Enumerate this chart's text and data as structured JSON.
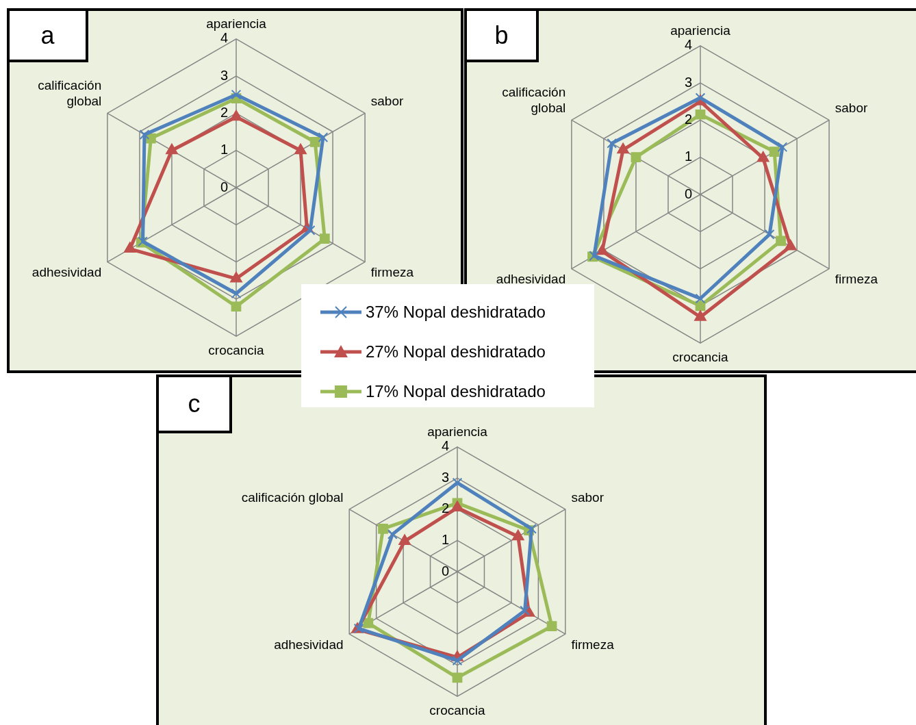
{
  "chart_data": [
    {
      "type": "radar",
      "title": "a",
      "categories": [
        "apariencia",
        "sabor",
        "firmeza",
        "crocancia",
        "adhesividad",
        "calificación global"
      ],
      "ylim": [
        0,
        4
      ],
      "yticks": [
        0,
        1,
        2,
        3,
        4
      ],
      "grid": true,
      "legend": "bottom right",
      "series": [
        {
          "name": "37% Nopal deshidratado",
          "color": "#4f81bd",
          "marker": "cross",
          "values": [
            2.5,
            2.7,
            2.3,
            2.85,
            2.9,
            2.85
          ]
        },
        {
          "name": "27% Nopal deshidratado",
          "color": "#c0504d",
          "marker": "triangle",
          "values": [
            1.9,
            2.0,
            2.2,
            2.45,
            3.3,
            2.0
          ]
        },
        {
          "name": "17% Nopal deshidratado",
          "color": "#9bbb59",
          "marker": "square",
          "values": [
            2.4,
            2.45,
            2.75,
            3.2,
            2.95,
            2.65
          ]
        }
      ]
    },
    {
      "type": "radar",
      "title": "b",
      "categories": [
        "apariencia",
        "sabor",
        "firmeza",
        "crocancia",
        "adhesividad",
        "calificación global"
      ],
      "ylim": [
        0,
        4
      ],
      "yticks": [
        0,
        1,
        2,
        3,
        4
      ],
      "grid": true,
      "series": [
        {
          "color": "#4f81bd",
          "marker": "cross",
          "values": [
            2.6,
            2.55,
            2.15,
            2.8,
            3.3,
            2.75
          ]
        },
        {
          "color": "#c0504d",
          "marker": "triangle",
          "values": [
            2.5,
            1.95,
            2.8,
            3.3,
            3.05,
            2.4
          ]
        },
        {
          "color": "#9bbb59",
          "marker": "square",
          "values": [
            2.15,
            2.3,
            2.5,
            3.0,
            3.35,
            2.0
          ]
        }
      ]
    },
    {
      "type": "radar",
      "title": "c",
      "categories": [
        "apariencia",
        "sabor",
        "firmeza",
        "crocancia",
        "adhesividad",
        "calificación global"
      ],
      "ylim": [
        0,
        4
      ],
      "yticks": [
        0,
        1,
        2,
        3,
        4
      ],
      "grid": true,
      "series": [
        {
          "color": "#4f81bd",
          "marker": "cross",
          "values": [
            2.85,
            2.75,
            2.5,
            2.85,
            3.65,
            2.4
          ]
        },
        {
          "color": "#c0504d",
          "marker": "triangle",
          "values": [
            2.05,
            2.25,
            2.65,
            2.75,
            3.7,
            1.95
          ]
        },
        {
          "color": "#9bbb59",
          "marker": "square",
          "values": [
            2.2,
            2.65,
            3.5,
            3.4,
            3.3,
            2.75
          ]
        }
      ]
    }
  ]
}
